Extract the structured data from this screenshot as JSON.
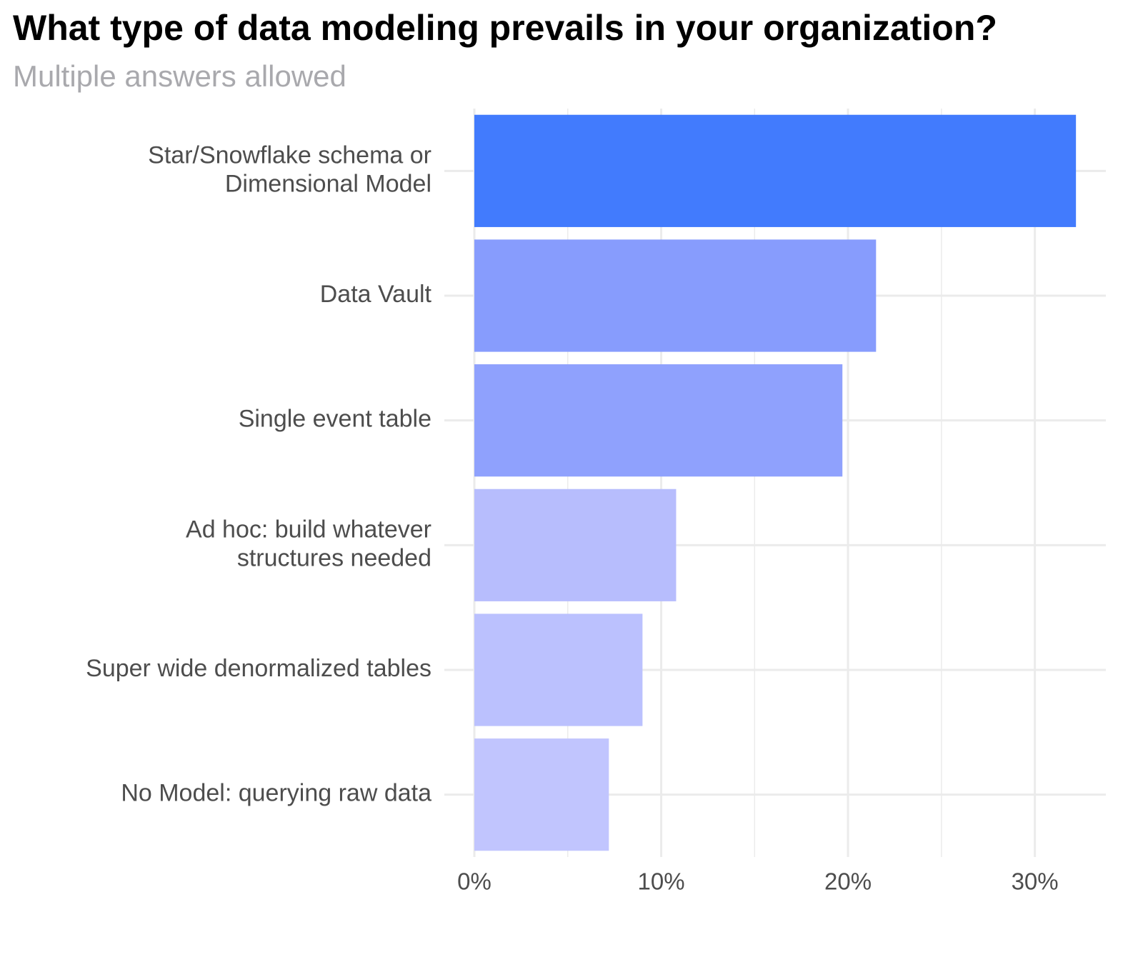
{
  "chart_data": {
    "type": "bar",
    "orientation": "horizontal",
    "title": "What type of data modeling prevails in your organization?",
    "subtitle": "Multiple answers allowed",
    "categories": [
      [
        "Star/Snowflake schema or",
        "Dimensional Model"
      ],
      [
        "Data Vault"
      ],
      [
        "Single event table"
      ],
      [
        "Ad hoc: build whatever",
        "structures needed"
      ],
      [
        "Super wide denormalized tables"
      ],
      [
        "No Model: querying raw data"
      ]
    ],
    "values": [
      32.2,
      21.5,
      19.7,
      10.8,
      9.0,
      7.2
    ],
    "bar_colors": [
      "#427bfd",
      "#879cfd",
      "#8fa1fd",
      "#b7bdfd",
      "#bbc1fe",
      "#c1c5fe"
    ],
    "xlim": [
      0,
      33.8
    ],
    "x_ticks": [
      0,
      10,
      20,
      30
    ],
    "x_tick_labels": [
      "0%",
      "10%",
      "20%",
      "30%"
    ],
    "xlabel": "",
    "ylabel": "",
    "grid": true,
    "gridline_color": "#ebebeb",
    "label_color": "#4d4d4d",
    "legend": "none"
  }
}
